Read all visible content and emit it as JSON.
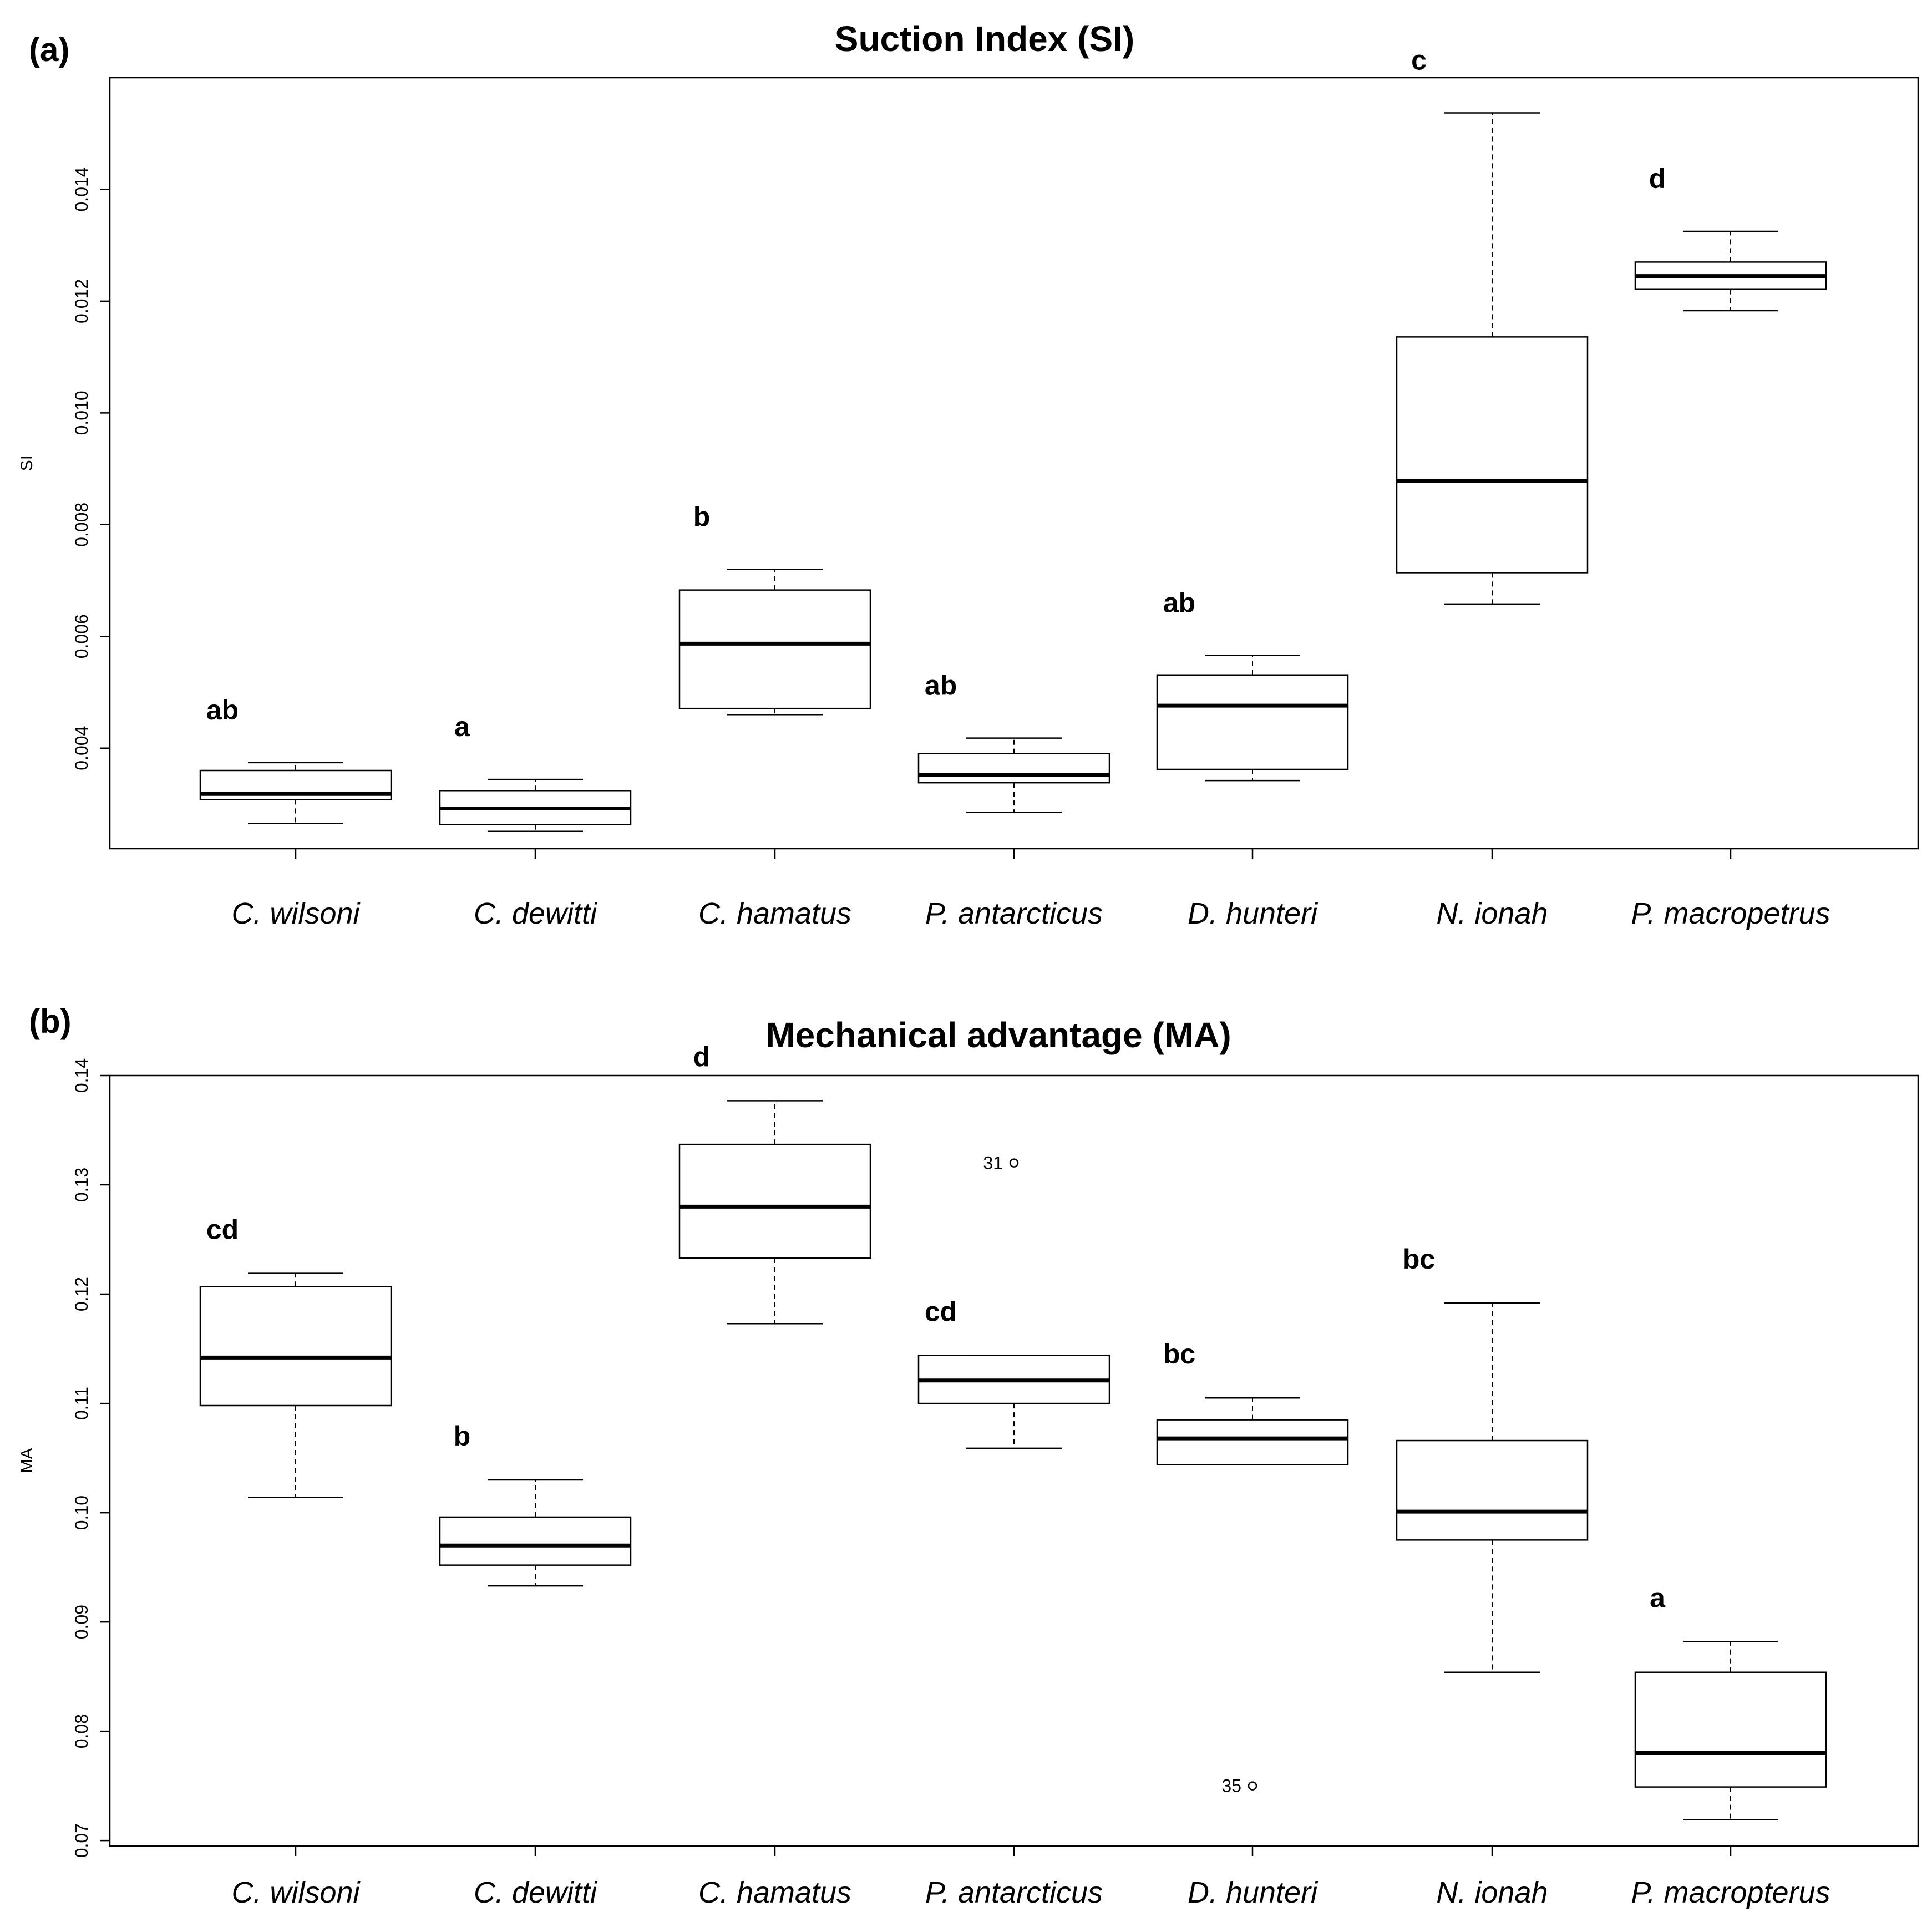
{
  "chart_data": [
    {
      "type": "boxplot",
      "panel_label": "(a)",
      "title": "Suction Index (SI)",
      "xlabel": "",
      "ylabel": "SI",
      "ylim": [
        0.0022,
        0.016
      ],
      "yticks": [
        0.004,
        0.006,
        0.008,
        0.01,
        0.012,
        0.014
      ],
      "ytick_labels": [
        "0.004",
        "0.006",
        "0.008",
        "0.010",
        "0.012",
        "0.014"
      ],
      "categories": [
        "C. wilsoni",
        "C. dewitti",
        "C. hamatus",
        "P. antarcticus",
        "D. hunteri",
        "N. ionah",
        "P. macropetrus"
      ],
      "boxes": [
        {
          "min": 0.00265,
          "q1": 0.00308,
          "median": 0.00318,
          "q3": 0.0036,
          "max": 0.00374,
          "letter": "ab"
        },
        {
          "min": 0.00251,
          "q1": 0.00263,
          "median": 0.00292,
          "q3": 0.00324,
          "max": 0.00344,
          "letter": "a"
        },
        {
          "min": 0.0046,
          "q1": 0.00471,
          "median": 0.00587,
          "q3": 0.00683,
          "max": 0.0072,
          "letter": "b"
        },
        {
          "min": 0.00285,
          "q1": 0.00338,
          "median": 0.00352,
          "q3": 0.0039,
          "max": 0.00418,
          "letter": "ab"
        },
        {
          "min": 0.00342,
          "q1": 0.00362,
          "median": 0.00476,
          "q3": 0.00531,
          "max": 0.00566,
          "letter": "ab"
        },
        {
          "min": 0.00658,
          "q1": 0.00714,
          "median": 0.00878,
          "q3": 0.01136,
          "max": 0.01537,
          "letter": "c"
        },
        {
          "min": 0.01183,
          "q1": 0.01221,
          "median": 0.01245,
          "q3": 0.0127,
          "max": 0.01325,
          "letter": "d"
        }
      ],
      "outliers": []
    },
    {
      "type": "boxplot",
      "panel_label": "(b)",
      "title": "Mechanical advantage (MA)",
      "xlabel": "",
      "ylabel": "MA",
      "ylim": [
        0.0695,
        0.14
      ],
      "yticks": [
        0.07,
        0.08,
        0.09,
        0.1,
        0.11,
        0.12,
        0.13,
        0.14
      ],
      "ytick_labels": [
        "0.07",
        "0.08",
        "0.09",
        "0.10",
        "0.11",
        "0.12",
        "0.13",
        "0.14"
      ],
      "categories": [
        "C. wilsoni",
        "C. dewitti",
        "C. hamatus",
        "P. antarcticus",
        "D. hunteri",
        "N. ionah",
        "P. macropterus"
      ],
      "boxes": [
        {
          "min": 0.1014,
          "q1": 0.1098,
          "median": 0.1142,
          "q3": 0.1207,
          "max": 0.1219,
          "letter": "cd"
        },
        {
          "min": 0.0933,
          "q1": 0.0952,
          "median": 0.097,
          "q3": 0.0996,
          "max": 0.103,
          "letter": "b"
        },
        {
          "min": 0.1173,
          "q1": 0.1233,
          "median": 0.128,
          "q3": 0.1337,
          "max": 0.1377,
          "letter": "d"
        },
        {
          "min": 0.1059,
          "q1": 0.11,
          "median": 0.1121,
          "q3": 0.1144,
          "max": 0.1144,
          "letter": "cd"
        },
        {
          "min": 0.1044,
          "q1": 0.1044,
          "median": 0.1068,
          "q3": 0.1085,
          "max": 0.1105,
          "letter": "bc"
        },
        {
          "min": 0.0854,
          "q1": 0.0975,
          "median": 0.1001,
          "q3": 0.1066,
          "max": 0.1192,
          "letter": "bc"
        },
        {
          "min": 0.0719,
          "q1": 0.0749,
          "median": 0.078,
          "q3": 0.0854,
          "max": 0.0882,
          "letter": "a"
        }
      ],
      "outliers": [
        {
          "category_index": 3,
          "value": 0.132,
          "label": "31"
        },
        {
          "category_index": 4,
          "value": 0.075,
          "label": "35"
        }
      ]
    }
  ]
}
